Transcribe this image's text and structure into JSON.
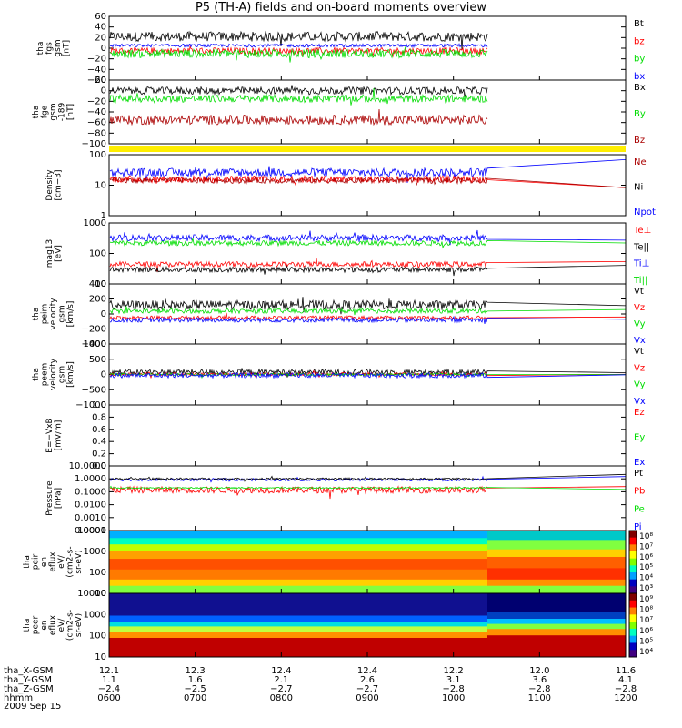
{
  "title": "P5 (TH-A) fields and on-board moments overview",
  "date_label": "2009 Sep 15",
  "colors": {
    "black": "#000000",
    "red": "#ff0000",
    "green": "#00dd00",
    "blue": "#0000ff",
    "darkred": "#aa0000",
    "yellow": "#ffee00"
  },
  "chart_data": [
    {
      "id": "fgs",
      "type": "line",
      "ylabel": [
        "tha",
        "fgs",
        "gsm",
        "[nT]"
      ],
      "yticks": [
        "60",
        "40",
        "20",
        "0",
        "−20",
        "−40",
        "−60"
      ],
      "ylim": [
        -60,
        60
      ],
      "legend": [
        {
          "name": "Bt",
          "color": "black"
        },
        {
          "name": "bz",
          "color": "red"
        },
        {
          "name": "by",
          "color": "green"
        },
        {
          "name": "bx",
          "color": "blue"
        }
      ],
      "series": [
        {
          "name": "Bt",
          "color": "black",
          "level": 22,
          "noise": 9
        },
        {
          "name": "bz",
          "color": "red",
          "level": -5,
          "noise": 6
        },
        {
          "name": "by",
          "color": "green",
          "level": -10,
          "noise": 8
        },
        {
          "name": "bx",
          "color": "blue",
          "level": 5,
          "noise": 3
        }
      ]
    },
    {
      "id": "fge",
      "type": "line",
      "ylabel": [
        "tha",
        "fge",
        "gsm",
        "-189",
        "[nT]"
      ],
      "yticks": [
        "20",
        "0",
        "−20",
        "−40",
        "−60",
        "−80",
        "−100"
      ],
      "ylim": [
        -100,
        20
      ],
      "legend": [
        {
          "name": "Bx",
          "color": "black"
        },
        {
          "name": "By",
          "color": "green"
        },
        {
          "name": "Bz",
          "color": "darkred"
        }
      ],
      "series": [
        {
          "name": "Bx",
          "color": "black",
          "level": 0,
          "noise": 7
        },
        {
          "name": "By",
          "color": "green",
          "level": -15,
          "noise": 7
        },
        {
          "name": "Bz",
          "color": "darkred",
          "level": -55,
          "noise": 9
        }
      ]
    },
    {
      "id": "density",
      "type": "line",
      "log": true,
      "ylabel": [
        "Density",
        "[cm−3]"
      ],
      "yticks": [
        "100",
        "10",
        "1"
      ],
      "ylim": [
        1,
        150
      ],
      "legend": [
        {
          "name": "Ne",
          "color": "darkred"
        },
        {
          "name": "Ni",
          "color": "black"
        },
        {
          "name": "Npot",
          "color": "blue"
        }
      ],
      "series": [
        {
          "name": "Npot",
          "color": "blue",
          "level": 35,
          "noise": 0.15,
          "tail": 100
        },
        {
          "name": "Ne",
          "color": "red",
          "level": 20,
          "noise": 0.12,
          "tail": 10
        },
        {
          "name": "Ni",
          "color": "darkred",
          "level": 18,
          "noise": 0.1,
          "tail": 10
        }
      ]
    },
    {
      "id": "temp",
      "type": "line",
      "log": true,
      "ylabel": [
        "mag13",
        "[eV]"
      ],
      "yticks": [
        "1000",
        "100",
        "10"
      ],
      "ylim": [
        10,
        2000
      ],
      "legend": [
        {
          "name": "Te⊥",
          "color": "red"
        },
        {
          "name": "Te||",
          "color": "black"
        },
        {
          "name": "Ti⊥",
          "color": "blue"
        },
        {
          "name": "Ti||",
          "color": "green"
        }
      ],
      "series": [
        {
          "name": "Ti⊥",
          "color": "blue",
          "level": 550,
          "noise": 0.12,
          "tail": 450
        },
        {
          "name": "Ti||",
          "color": "green",
          "level": 350,
          "noise": 0.1,
          "tail": 350
        },
        {
          "name": "Te⊥",
          "color": "red",
          "level": 55,
          "noise": 0.1,
          "tail": 70
        },
        {
          "name": "Te||",
          "color": "black",
          "level": 35,
          "noise": 0.1,
          "tail": 50
        }
      ]
    },
    {
      "id": "peim",
      "type": "line",
      "ylabel": [
        "tha",
        "peim",
        "velocity",
        "gsm",
        "[km/s]"
      ],
      "yticks": [
        "400",
        "200",
        "0",
        "−200",
        "−400"
      ],
      "ylim": [
        -400,
        400
      ],
      "legend": [
        {
          "name": "Vt",
          "color": "black"
        },
        {
          "name": "Vz",
          "color": "red"
        },
        {
          "name": "Vy",
          "color": "green"
        },
        {
          "name": "Vx",
          "color": "blue"
        }
      ],
      "series": [
        {
          "name": "Vt",
          "color": "black",
          "level": 120,
          "noise": 60,
          "tail": 110
        },
        {
          "name": "Vy",
          "color": "green",
          "level": 40,
          "noise": 30,
          "tail": 60
        },
        {
          "name": "Vz",
          "color": "red",
          "level": -50,
          "noise": 25,
          "tail": -40
        },
        {
          "name": "Vx",
          "color": "blue",
          "level": -80,
          "noise": 30,
          "tail": -70
        }
      ]
    },
    {
      "id": "peem",
      "type": "line",
      "ylabel": [
        "tha",
        "peem",
        "velocity",
        "gsm",
        "[km/s]"
      ],
      "yticks": [
        "1000",
        "500",
        "0",
        "−500",
        "−1000"
      ],
      "ylim": [
        -1000,
        1000
      ],
      "legend": [
        {
          "name": "Vt",
          "color": "black"
        },
        {
          "name": "Vz",
          "color": "red"
        },
        {
          "name": "Vy",
          "color": "green"
        },
        {
          "name": "Vx",
          "color": "blue"
        }
      ],
      "series": [
        {
          "name": "Vt",
          "color": "black",
          "level": 80,
          "noise": 90,
          "tail": 60
        },
        {
          "name": "Vz",
          "color": "red",
          "level": 10,
          "noise": 50,
          "tail": 5
        },
        {
          "name": "Vy",
          "color": "green",
          "level": 0,
          "noise": 40,
          "tail": 0
        },
        {
          "name": "Vx",
          "color": "blue",
          "level": -30,
          "noise": 80,
          "tail": -10
        }
      ]
    },
    {
      "id": "efield",
      "type": "line",
      "ylabel": [
        "E=−VxB",
        "[mV/m]"
      ],
      "yticks": [
        "1.0",
        "0.8",
        "0.6",
        "0.4",
        "0.2",
        "0.0"
      ],
      "ylim": [
        0,
        1
      ],
      "legend": [
        {
          "name": "Ez",
          "color": "red"
        },
        {
          "name": "Ey",
          "color": "green"
        },
        {
          "name": "Ex",
          "color": "blue"
        }
      ],
      "series": []
    },
    {
      "id": "pressure",
      "type": "line",
      "log": true,
      "ylabel": [
        "Pressure",
        "[nPa]"
      ],
      "yticks": [
        "10.0000",
        "1.0000",
        "0.1000",
        "0.0100",
        "0.0010",
        "0.0001"
      ],
      "ylim": [
        0.0001,
        10
      ],
      "legend": [
        {
          "name": "Pt",
          "color": "black"
        },
        {
          "name": "Pb",
          "color": "red"
        },
        {
          "name": "Pe",
          "color": "green"
        },
        {
          "name": "Pi",
          "color": "blue"
        }
      ],
      "series": [
        {
          "name": "Pi",
          "color": "blue",
          "level": 0.85,
          "noise": 0.1,
          "tail": 1.5
        },
        {
          "name": "Pt",
          "color": "black",
          "level": 1.0,
          "noise": 0.08,
          "tail": 2.2
        },
        {
          "name": "Pb",
          "color": "red",
          "level": 0.14,
          "noise": 0.25,
          "tail": 0.25
        },
        {
          "name": "Pe",
          "color": "green",
          "level": 0.2,
          "noise": 0.05,
          "tail": 0.15
        }
      ]
    },
    {
      "id": "peir",
      "type": "heatmap",
      "ylabel": [
        "tha",
        "peir",
        "en",
        "eflux",
        "eV/",
        "(cm2-s-",
        "sr-eV)"
      ],
      "yticks": [
        "10000",
        "1000",
        "100",
        "10"
      ],
      "colorbar_ticks": [
        "10⁸",
        "10⁷",
        "10⁶",
        "10⁵",
        "10⁴",
        "10³"
      ]
    },
    {
      "id": "peer",
      "type": "heatmap",
      "ylabel": [
        "tha",
        "peer",
        "en",
        "eflux",
        "eV/",
        "(cm2-s-",
        "sr-eV)"
      ],
      "yticks": [
        "10000",
        "1000",
        "100",
        "10"
      ],
      "colorbar_ticks": [
        "10⁹",
        "10⁸",
        "10⁷",
        "10⁶",
        "10⁵",
        "10⁴"
      ]
    }
  ],
  "x_axis": {
    "rows": [
      {
        "label": "tha_X-GSM",
        "values": [
          "12.1",
          "12.3",
          "12.4",
          "12.4",
          "12.2",
          "12.0",
          "11.6"
        ]
      },
      {
        "label": "tha_Y-GSM",
        "values": [
          "1.1",
          "1.6",
          "2.1",
          "2.6",
          "3.1",
          "3.6",
          "4.1"
        ]
      },
      {
        "label": "tha_Z-GSM",
        "values": [
          "−2.4",
          "−2.5",
          "−2.7",
          "−2.7",
          "−2.8",
          "−2.8",
          "−2.8"
        ]
      },
      {
        "label": "hhmm",
        "values": [
          "0600",
          "0700",
          "0800",
          "0900",
          "1000",
          "1100",
          "1200"
        ]
      }
    ]
  }
}
